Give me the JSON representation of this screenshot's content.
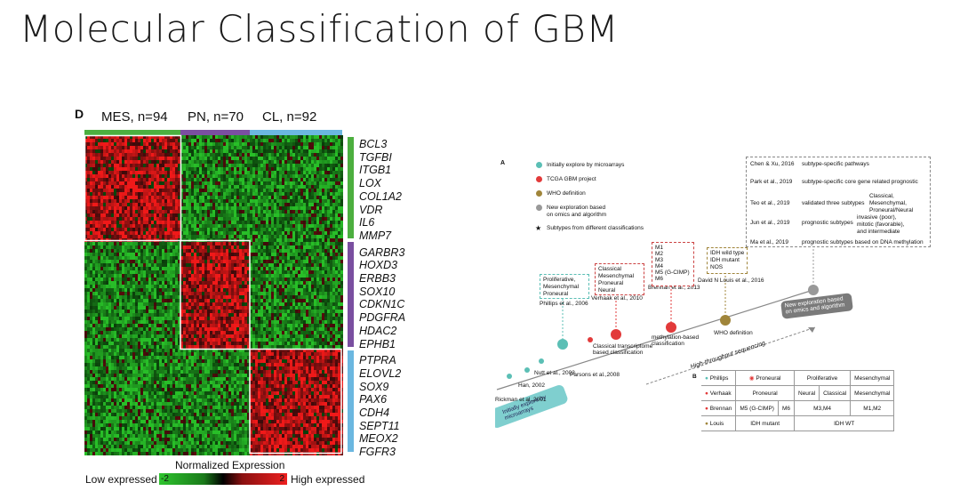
{
  "slide": {
    "title": "Molecular Classification of GBM"
  },
  "panel_d": {
    "label": "D",
    "groups": [
      {
        "name": "MES, n=94",
        "color": "#4caf3f"
      },
      {
        "name": "PN, n=70",
        "color": "#7a4fa0"
      },
      {
        "name": "CL, n=92",
        "color": "#6bb7e0"
      }
    ],
    "genes": [
      "BCL3",
      "TGFBI",
      "ITGB1",
      "LOX",
      "COL1A2",
      "VDR",
      "IL6",
      "MMP7",
      "GARBR3",
      "HOXD3",
      "ERBB3",
      "SOX10",
      "CDKN1C",
      "PDGFRA",
      "HDAC2",
      "EPHB1",
      "PTPRA",
      "ELOVL2",
      "SOX9",
      "PAX6",
      "CDH4",
      "SEPT11",
      "MEOX2",
      "FGFR3"
    ],
    "legend": {
      "title": "Normalized Expression",
      "low": "Low expressed",
      "high": "High expressed",
      "min": "-2",
      "max": "2"
    }
  },
  "panel_a": {
    "label": "A",
    "legend": [
      {
        "text": "Initially explore by microarrays",
        "color": "#5bbfb5"
      },
      {
        "text": "TCGA GBM project",
        "color": "#e23a3a"
      },
      {
        "text": "WHO definition",
        "color": "#a0853a"
      },
      {
        "text": "New exploration based",
        "color": "#999999"
      },
      {
        "text": "on omics and algorithm",
        "color": ""
      },
      {
        "text": "Subtypes from different classifications",
        "color": "★"
      }
    ],
    "refs": {
      "rickman": "Rickman et al.,2001",
      "han": "Han, 2002",
      "nutt": "Nutt et al., 2003",
      "phillips": "Phillips et al., 2006",
      "parsons": "Parsons et al.,2008",
      "verhaak": "Verhaak et al., 2010",
      "brennan": "Brennan et al., 2013",
      "louis": "David N Louis et al., 2016"
    },
    "phillips_box": [
      "Proliferative,",
      "Mesenchymal",
      "Proneural"
    ],
    "verhaak_box": [
      "Classical",
      "Mesenchymal",
      "Proneural",
      "Neural"
    ],
    "brennan_box": [
      "M1",
      "M2",
      "M3",
      "M4",
      "M5 (G-CIMP)",
      "M6"
    ],
    "louis_box": [
      "IDH wild type",
      "IDH mutant",
      "NOS"
    ],
    "milestones": {
      "classical": "Classical transcriptome based classification",
      "methylation": "methylation-based classification",
      "who": "WHO definition",
      "new": "New exploration based on omics and algorithm",
      "htp": "High-throughput sequencing",
      "micro": "Initially explore by microarrays"
    },
    "recent": [
      {
        "ref": "Chen & Xu, 2016",
        "text": "subtype-specific pathways"
      },
      {
        "ref": "Park et al., 2019",
        "text": "subtype-specific core gene related  prognostic"
      },
      {
        "ref": "Teo et al., 2019",
        "text": "validated three subtypes"
      },
      {
        "ref": "Jun et al., 2019",
        "text": "prognostic subtypes"
      },
      {
        "ref": "Ma et al., 2019",
        "text": "prognostic subtypes based on DNA methylation"
      }
    ],
    "teo_items": [
      "Classical,",
      "Mesenchymal,",
      "Proneural/Neural"
    ],
    "jun_items": [
      "invasive (poor),",
      "mitotic (favorable),",
      "and intermediate"
    ]
  },
  "panel_b": {
    "label": "B",
    "rows": [
      {
        "name": "Phillips",
        "color": "#5bbfb5",
        "cells": [
          "Proneural",
          "Proliferative",
          "Mesenchymal"
        ]
      },
      {
        "name": "Verhaak",
        "color": "#e23a3a",
        "cells": [
          "Proneural",
          "Neural",
          "Classical",
          "Mesenchymal"
        ]
      },
      {
        "name": "Brennan",
        "color": "#e23a3a",
        "cells": [
          "M5 (G-CIMP)",
          "M6",
          "M3,M4",
          "M1,M2"
        ]
      },
      {
        "name": "Louis",
        "color": "#a0853a",
        "cells": [
          "IDH mutant",
          "IDH WT"
        ]
      }
    ]
  }
}
